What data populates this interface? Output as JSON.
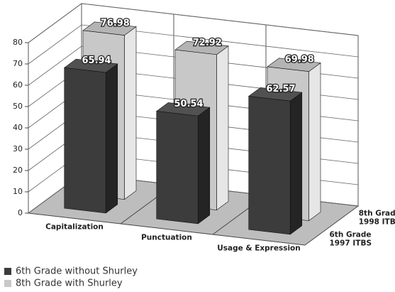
{
  "chart_data": {
    "type": "bar",
    "categories": [
      "Capitalization",
      "Punctuation",
      "Usage & Expression"
    ],
    "series": [
      {
        "name": "6th Grade without Shurley",
        "color": "#3c3c3c",
        "values": [
          65.94,
          50.54,
          62.57
        ]
      },
      {
        "name": "8th Grade with Shurley",
        "color": "#c8c8c8",
        "values": [
          76.98,
          72.92,
          69.98
        ]
      }
    ],
    "depth_labels": [
      [
        "6th Grade",
        "1997 ITBS"
      ],
      [
        "8th Grade",
        "1998 ITBS"
      ]
    ],
    "ylim": [
      0,
      80
    ],
    "yticks": [
      0,
      10,
      20,
      30,
      40,
      50,
      60,
      70,
      80
    ],
    "grid": true,
    "legend": "bottom-left"
  }
}
